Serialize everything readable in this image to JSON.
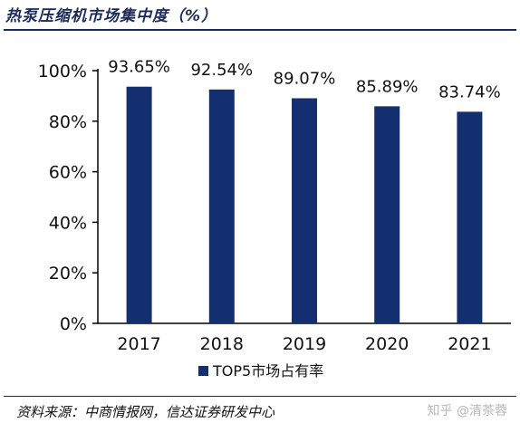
{
  "header": {
    "title": "热泵压缩机市场集中度（%）"
  },
  "footer": {
    "source": "资料来源：中商情报网，信达证券研发中心",
    "watermark": "知乎 @清茶蓉"
  },
  "colors": {
    "bar": "#142f6f",
    "axis": "#000000",
    "text": "#111111",
    "rule": "#1a2a5a"
  },
  "chart_data": {
    "type": "bar",
    "title": "",
    "xlabel": "",
    "ylabel": "",
    "categories": [
      "2017",
      "2018",
      "2019",
      "2020",
      "2021"
    ],
    "series": [
      {
        "name": "TOP5市场占有率",
        "values": [
          93.65,
          92.54,
          89.07,
          85.89,
          83.74
        ]
      }
    ],
    "data_labels": [
      "93.65%",
      "92.54%",
      "89.07%",
      "85.89%",
      "83.74%"
    ],
    "ylim": [
      0,
      100
    ],
    "yticks": [
      0,
      20,
      40,
      60,
      80,
      100
    ],
    "ytick_labels": [
      "0%",
      "20%",
      "40%",
      "60%",
      "80%",
      "100%"
    ],
    "grid": false,
    "legend": {
      "position": "bottom-left",
      "marker": "square"
    }
  }
}
